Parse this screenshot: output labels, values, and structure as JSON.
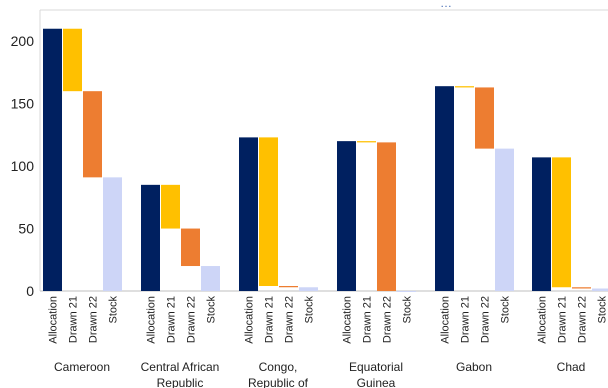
{
  "chart_data": {
    "type": "bar",
    "subtype": "waterfall",
    "title_partial": "…",
    "ylim": [
      0,
      225
    ],
    "yticks": [
      0,
      50,
      100,
      150,
      200
    ],
    "grid": false,
    "bar_labels": [
      "Allocation",
      "Drawn 21",
      "Drawn 22",
      "Stock"
    ],
    "colors": {
      "Allocation": "#002060",
      "Drawn 21": "#FFC000",
      "Drawn 22": "#ED7D31",
      "Stock": "#CDD5F7"
    },
    "categories": [
      {
        "name": [
          "Cameroon"
        ],
        "allocation": 210,
        "drawn21": 50,
        "drawn22": 69,
        "stock": 91
      },
      {
        "name": [
          "Central African",
          "Republic"
        ],
        "allocation": 85,
        "drawn21": 35,
        "drawn22": 30,
        "stock": 20
      },
      {
        "name": [
          "Congo,",
          "Republic of"
        ],
        "allocation": 123,
        "drawn21": 119,
        "drawn22": 1,
        "stock": 3
      },
      {
        "name": [
          "Equatorial",
          "Guinea"
        ],
        "allocation": 120,
        "drawn21": 1,
        "drawn22": 119,
        "stock": 0
      },
      {
        "name": [
          "Gabon"
        ],
        "allocation": 164,
        "drawn21": 1,
        "drawn22": 49,
        "stock": 114
      },
      {
        "name": [
          "Chad"
        ],
        "allocation": 107,
        "drawn21": 104,
        "drawn22": 1,
        "stock": 2
      }
    ]
  }
}
